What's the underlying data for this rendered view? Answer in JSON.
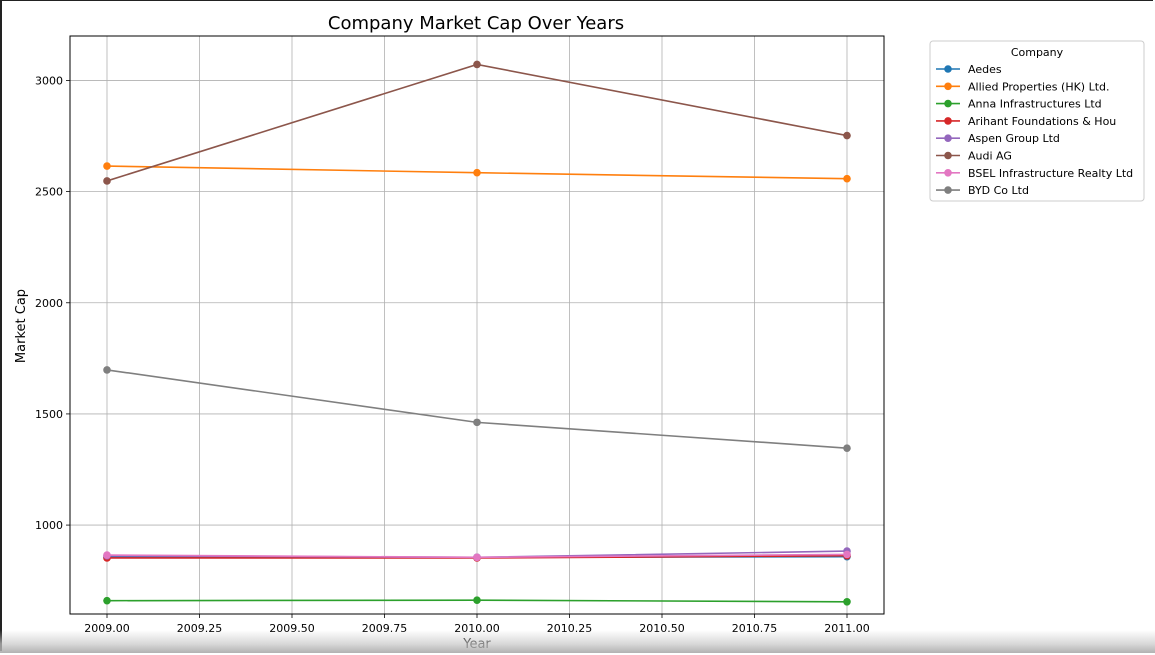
{
  "chart_data": {
    "type": "line",
    "title": "Company Market Cap Over Years",
    "xlabel": "Year",
    "ylabel": "Market Cap",
    "x": [
      2009,
      2010,
      2011
    ],
    "xlim": [
      2008.9,
      2011.1
    ],
    "ylim": [
      600,
      3200
    ],
    "xticks": [
      2009.0,
      2009.25,
      2009.5,
      2009.75,
      2010.0,
      2010.25,
      2010.5,
      2010.75,
      2011.0
    ],
    "xtick_labels": [
      "2009.00",
      "2009.25",
      "2009.50",
      "2009.75",
      "2010.00",
      "2010.25",
      "2010.50",
      "2010.75",
      "2011.00"
    ],
    "yticks": [
      1000,
      1500,
      2000,
      2500,
      3000
    ],
    "ytick_labels": [
      "1000",
      "1500",
      "2000",
      "2500",
      "3000"
    ],
    "grid": true,
    "legend_title": "Company",
    "legend_position": "outside-top-right",
    "series": [
      {
        "name": "Aedes",
        "color": "#1f77b4",
        "values": [
          855,
          855,
          858
        ]
      },
      {
        "name": "Allied Properties (HK) Ltd.",
        "color": "#ff7f0e",
        "values": [
          2615,
          2585,
          2558
        ]
      },
      {
        "name": "Anna Infrastructures Ltd",
        "color": "#2ca02c",
        "values": [
          660,
          662,
          655
        ]
      },
      {
        "name": "Arihant Foundations & Hou",
        "color": "#d62728",
        "values": [
          852,
          852,
          862
        ]
      },
      {
        "name": "Aspen Group Ltd",
        "color": "#9467bd",
        "values": [
          862,
          855,
          883
        ]
      },
      {
        "name": "Audi AG",
        "color": "#8c564b",
        "values": [
          2548,
          3072,
          2752
        ]
      },
      {
        "name": "BSEL Infrastructure Realty Ltd",
        "color": "#e377c2",
        "values": [
          865,
          855,
          868
        ]
      },
      {
        "name": "BYD Co Ltd",
        "color": "#7f7f7f",
        "values": [
          1698,
          1462,
          1346
        ]
      }
    ]
  }
}
